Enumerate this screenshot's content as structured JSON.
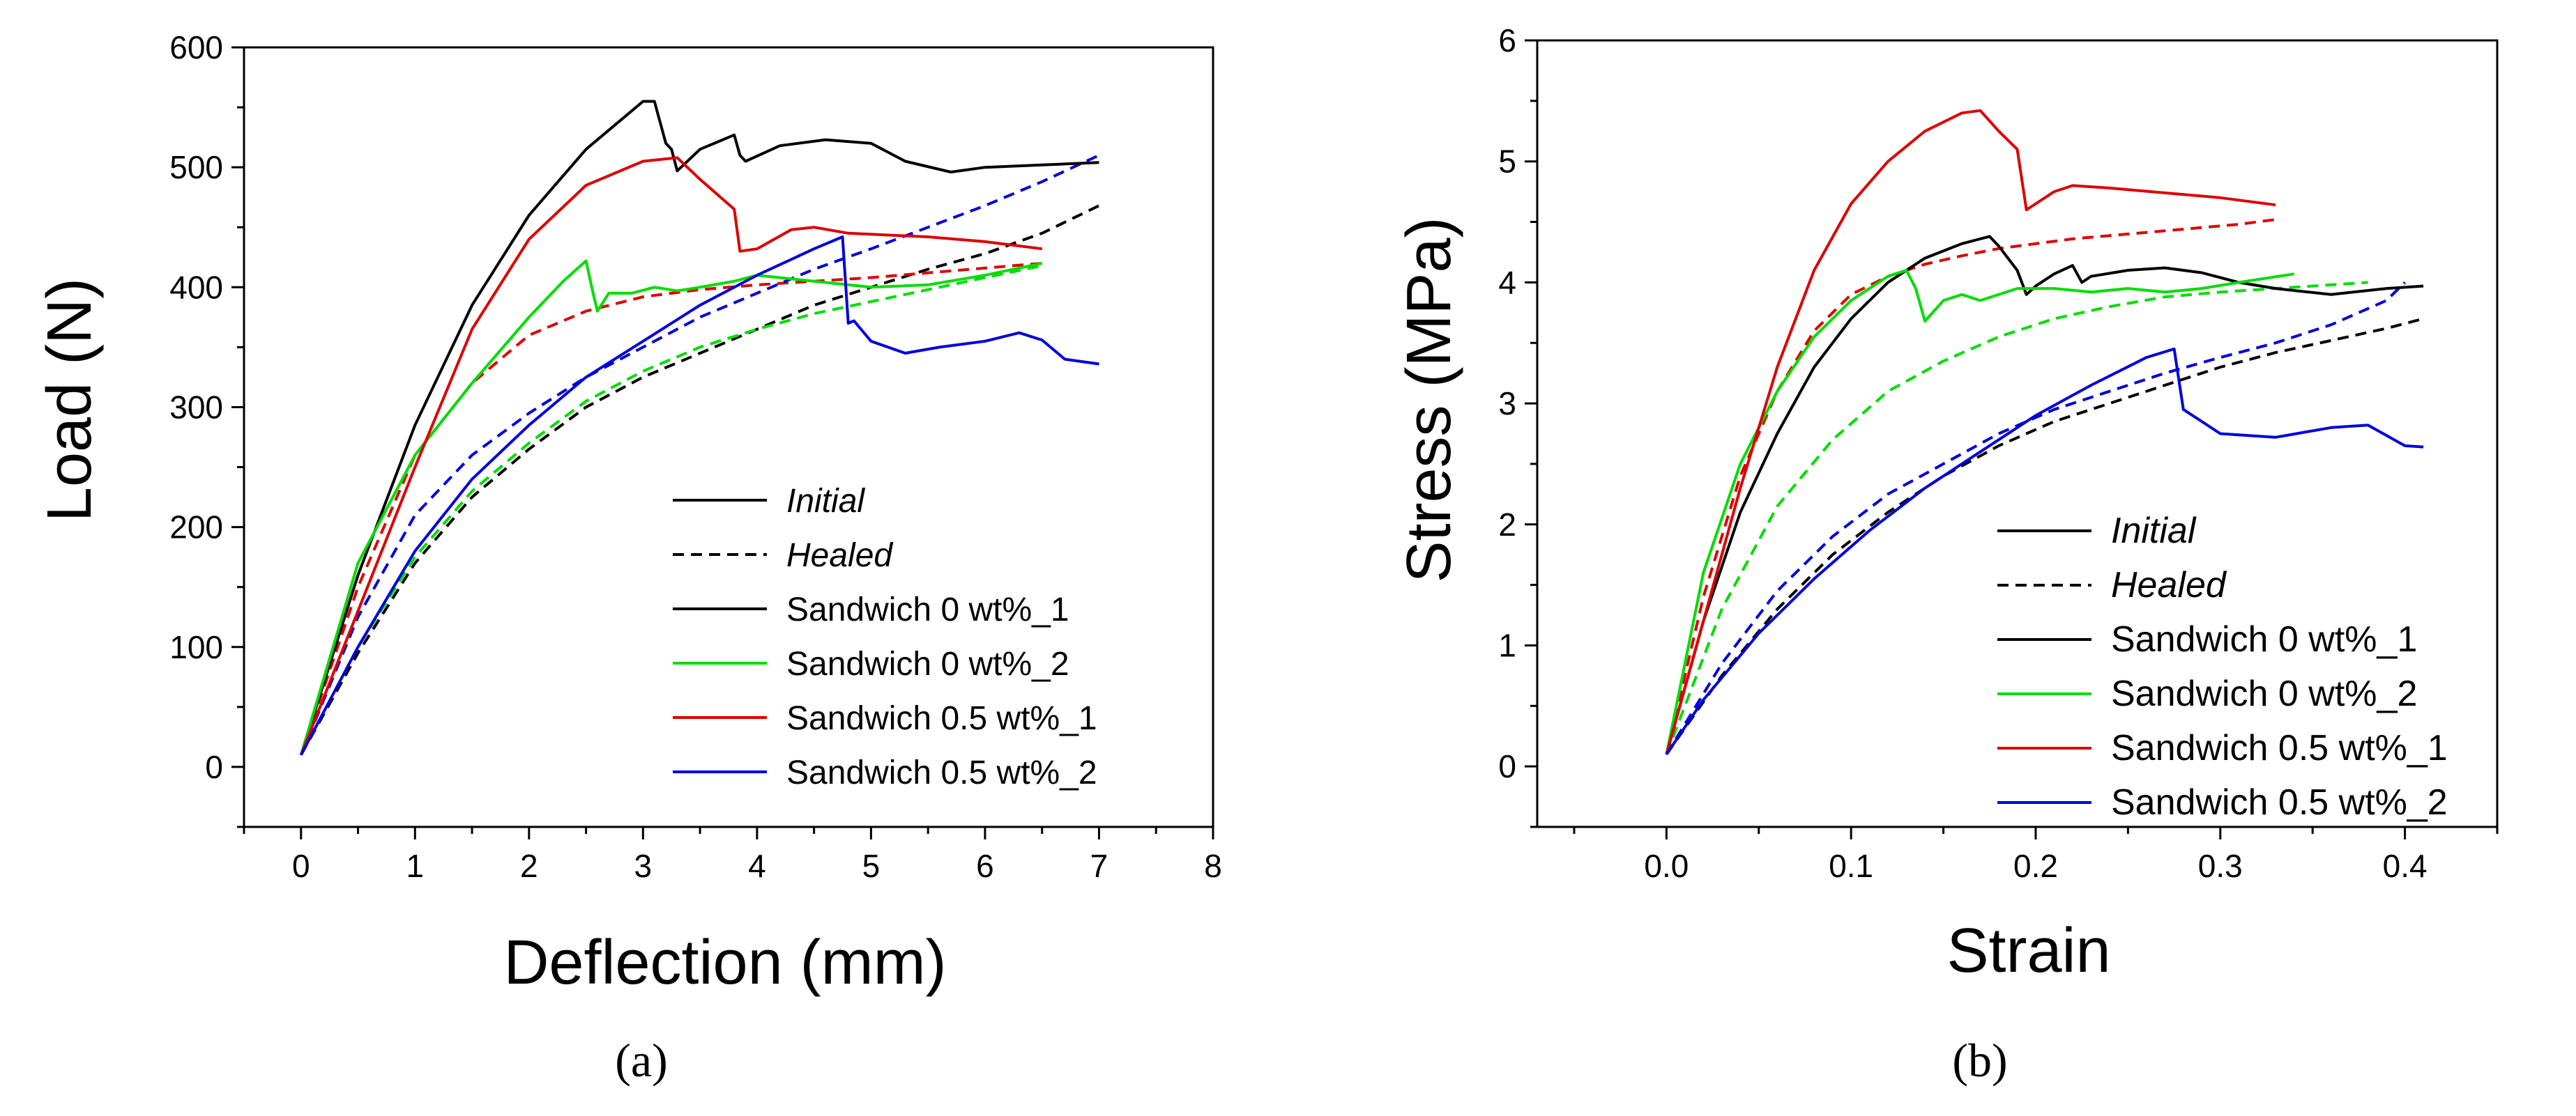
{
  "figure": {
    "legend": {
      "style_entries": [
        {
          "label": "Initial",
          "dash": "solid"
        },
        {
          "label": "Healed",
          "dash": "dashed"
        }
      ],
      "series_entries": [
        {
          "label": "Sandwich 0 wt%_1",
          "color": "#000000"
        },
        {
          "label": "Sandwich 0 wt%_2",
          "color": "#00dd00"
        },
        {
          "label": "Sandwich 0.5 wt%_1",
          "color": "#dd0000"
        },
        {
          "label": "Sandwich 0.5 wt%_2",
          "color": "#0000dd"
        }
      ]
    }
  },
  "chart_data": [
    {
      "id": "a",
      "panel_label": "(a)",
      "type": "line",
      "title": "",
      "xlabel": "Deflection (mm)",
      "ylabel": "Load (N)",
      "xlim": [
        -0.5,
        8
      ],
      "ylim": [
        -50,
        600
      ],
      "xticks": [
        0,
        1,
        2,
        3,
        4,
        5,
        6,
        7,
        8
      ],
      "yticks": [
        0,
        100,
        200,
        300,
        400,
        500,
        600
      ],
      "grid": false,
      "legend_placement": "bottom-right",
      "series": [
        {
          "name": "Sandwich 0 wt%_1",
          "state": "Initial",
          "color": "#000000",
          "dash": "solid",
          "x": [
            0,
            0.5,
            1.0,
            1.5,
            2.0,
            2.5,
            3.0,
            3.1,
            3.2,
            3.25,
            3.3,
            3.5,
            3.8,
            3.85,
            3.9,
            4.2,
            4.6,
            5.0,
            5.3,
            5.7,
            6.0,
            6.5,
            7.0
          ],
          "y": [
            10,
            160,
            285,
            385,
            460,
            515,
            555,
            555,
            520,
            515,
            497,
            515,
            527,
            510,
            505,
            518,
            523,
            520,
            505,
            496,
            500,
            502,
            504
          ]
        },
        {
          "name": "Sandwich 0 wt%_2",
          "state": "Initial",
          "color": "#00dd00",
          "dash": "solid",
          "x": [
            0,
            0.5,
            1.0,
            1.5,
            2.0,
            2.3,
            2.5,
            2.55,
            2.6,
            2.7,
            2.9,
            3.1,
            3.3,
            3.5,
            3.8,
            4.0,
            4.5,
            5.0,
            5.5,
            6.0,
            6.5
          ],
          "y": [
            10,
            170,
            260,
            320,
            375,
            405,
            422,
            400,
            380,
            395,
            395,
            400,
            397,
            400,
            405,
            410,
            405,
            400,
            402,
            410,
            420
          ]
        },
        {
          "name": "Sandwich 0.5 wt%_1",
          "state": "Initial",
          "color": "#dd0000",
          "dash": "solid",
          "x": [
            0,
            0.5,
            1.0,
            1.5,
            2.0,
            2.5,
            3.0,
            3.3,
            3.5,
            3.8,
            3.85,
            4.0,
            4.3,
            4.5,
            4.8,
            5.5,
            6.0,
            6.5
          ],
          "y": [
            10,
            130,
            250,
            365,
            440,
            485,
            505,
            508,
            490,
            465,
            430,
            432,
            448,
            450,
            445,
            442,
            438,
            432
          ]
        },
        {
          "name": "Sandwich 0.5 wt%_2",
          "state": "Initial",
          "color": "#0000dd",
          "dash": "solid",
          "x": [
            0,
            0.5,
            1.0,
            1.5,
            2.0,
            2.5,
            3.0,
            3.5,
            4.0,
            4.5,
            4.75,
            4.8,
            4.85,
            5.0,
            5.3,
            5.6,
            6.0,
            6.3,
            6.5,
            6.7,
            7.0
          ],
          "y": [
            10,
            100,
            180,
            240,
            285,
            325,
            355,
            385,
            410,
            432,
            442,
            370,
            372,
            355,
            345,
            350,
            355,
            362,
            356,
            340,
            336
          ]
        },
        {
          "name": "Sandwich 0 wt%_1",
          "state": "Healed",
          "color": "#000000",
          "dash": "dashed",
          "x": [
            0,
            0.5,
            1.0,
            1.5,
            2.0,
            2.5,
            3.0,
            3.5,
            4.0,
            4.5,
            5.0,
            5.5,
            6.0,
            6.5,
            7.0
          ],
          "y": [
            10,
            95,
            170,
            225,
            265,
            300,
            325,
            345,
            365,
            385,
            400,
            415,
            428,
            445,
            468
          ]
        },
        {
          "name": "Sandwich 0 wt%_2",
          "state": "Healed",
          "color": "#00dd00",
          "dash": "dashed",
          "x": [
            0,
            0.5,
            1.0,
            1.5,
            2.0,
            2.5,
            3.0,
            3.5,
            4.0,
            4.5,
            5.0,
            5.5,
            6.0,
            6.5
          ],
          "y": [
            10,
            100,
            175,
            230,
            270,
            305,
            330,
            350,
            365,
            378,
            388,
            398,
            408,
            418
          ]
        },
        {
          "name": "Sandwich 0.5 wt%_1",
          "state": "Healed",
          "color": "#dd0000",
          "dash": "dashed",
          "x": [
            0,
            0.5,
            1.0,
            1.5,
            2.0,
            2.5,
            3.0,
            3.5,
            4.0,
            4.5,
            5.0,
            5.5,
            6.0,
            6.5
          ],
          "y": [
            10,
            150,
            260,
            320,
            360,
            380,
            392,
            398,
            402,
            405,
            408,
            412,
            416,
            420
          ]
        },
        {
          "name": "Sandwich 0.5 wt%_2",
          "state": "Healed",
          "color": "#0000dd",
          "dash": "dashed",
          "x": [
            0,
            0.5,
            1.0,
            1.5,
            2.0,
            2.5,
            3.0,
            3.5,
            4.0,
            4.5,
            5.0,
            5.5,
            6.0,
            6.5,
            7.0
          ],
          "y": [
            10,
            125,
            210,
            260,
            295,
            325,
            350,
            375,
            395,
            415,
            432,
            450,
            468,
            488,
            510
          ]
        }
      ]
    },
    {
      "id": "b",
      "panel_label": "(b)",
      "type": "line",
      "title": "",
      "xlabel": "Strain",
      "ylabel": "Stress (MPa)",
      "xlim": [
        -0.07,
        0.45
      ],
      "ylim": [
        -0.5,
        6
      ],
      "xticks": [
        0.0,
        0.1,
        0.2,
        0.3,
        0.4
      ],
      "xtick_labels": [
        "0.0",
        "0.1",
        "0.2",
        "0.3",
        "0.4"
      ],
      "yticks": [
        0,
        1,
        2,
        3,
        4,
        5,
        6
      ],
      "grid": false,
      "legend_placement": "bottom-right",
      "series": [
        {
          "name": "Sandwich 0 wt%_1",
          "state": "Initial",
          "color": "#000000",
          "dash": "solid",
          "x": [
            0,
            0.02,
            0.04,
            0.06,
            0.08,
            0.1,
            0.12,
            0.14,
            0.16,
            0.175,
            0.18,
            0.19,
            0.195,
            0.2,
            0.21,
            0.22,
            0.225,
            0.23,
            0.25,
            0.27,
            0.29,
            0.31,
            0.33,
            0.36,
            0.39,
            0.41
          ],
          "y": [
            0.1,
            1.2,
            2.1,
            2.75,
            3.3,
            3.7,
            4.0,
            4.2,
            4.32,
            4.38,
            4.3,
            4.1,
            3.9,
            3.97,
            4.07,
            4.14,
            4.0,
            4.05,
            4.1,
            4.12,
            4.08,
            4.0,
            3.95,
            3.9,
            3.95,
            3.97
          ]
        },
        {
          "name": "Sandwich 0 wt%_2",
          "state": "Initial",
          "color": "#00dd00",
          "dash": "solid",
          "x": [
            0,
            0.02,
            0.04,
            0.06,
            0.08,
            0.1,
            0.12,
            0.13,
            0.135,
            0.14,
            0.15,
            0.16,
            0.17,
            0.19,
            0.21,
            0.23,
            0.25,
            0.27,
            0.29,
            0.31,
            0.34
          ],
          "y": [
            0.1,
            1.6,
            2.5,
            3.1,
            3.55,
            3.85,
            4.05,
            4.1,
            3.95,
            3.68,
            3.85,
            3.9,
            3.85,
            3.95,
            3.95,
            3.92,
            3.95,
            3.92,
            3.95,
            4.0,
            4.07
          ]
        },
        {
          "name": "Sandwich 0.5 wt%_1",
          "state": "Initial",
          "color": "#dd0000",
          "dash": "solid",
          "x": [
            0,
            0.02,
            0.04,
            0.06,
            0.08,
            0.1,
            0.12,
            0.14,
            0.16,
            0.17,
            0.18,
            0.19,
            0.195,
            0.2,
            0.21,
            0.22,
            0.24,
            0.27,
            0.3,
            0.33
          ],
          "y": [
            0.1,
            1.2,
            2.3,
            3.3,
            4.1,
            4.65,
            5.0,
            5.25,
            5.4,
            5.42,
            5.25,
            5.1,
            4.6,
            4.65,
            4.75,
            4.8,
            4.78,
            4.74,
            4.7,
            4.64
          ]
        },
        {
          "name": "Sandwich 0.5 wt%_2",
          "state": "Initial",
          "color": "#0000dd",
          "dash": "solid",
          "x": [
            0,
            0.02,
            0.05,
            0.08,
            0.11,
            0.14,
            0.17,
            0.2,
            0.23,
            0.26,
            0.275,
            0.28,
            0.29,
            0.3,
            0.33,
            0.36,
            0.38,
            0.4,
            0.41
          ],
          "y": [
            0.1,
            0.55,
            1.1,
            1.55,
            1.95,
            2.3,
            2.6,
            2.9,
            3.15,
            3.38,
            3.45,
            2.95,
            2.85,
            2.75,
            2.72,
            2.8,
            2.82,
            2.65,
            2.64
          ]
        },
        {
          "name": "Sandwich 0 wt%_1",
          "state": "Healed",
          "color": "#000000",
          "dash": "dashed",
          "x": [
            0,
            0.03,
            0.06,
            0.09,
            0.12,
            0.15,
            0.18,
            0.21,
            0.24,
            0.27,
            0.3,
            0.33,
            0.36,
            0.39,
            0.41
          ],
          "y": [
            0.1,
            0.75,
            1.3,
            1.75,
            2.1,
            2.4,
            2.65,
            2.85,
            3.0,
            3.15,
            3.3,
            3.42,
            3.52,
            3.62,
            3.7
          ]
        },
        {
          "name": "Sandwich 0 wt%_2",
          "state": "Healed",
          "color": "#00dd00",
          "dash": "dashed",
          "x": [
            0,
            0.03,
            0.06,
            0.09,
            0.12,
            0.15,
            0.18,
            0.21,
            0.24,
            0.27,
            0.3,
            0.33,
            0.35,
            0.38
          ],
          "y": [
            0.1,
            1.3,
            2.15,
            2.7,
            3.1,
            3.35,
            3.55,
            3.7,
            3.8,
            3.88,
            3.92,
            3.95,
            3.97,
            4.0
          ]
        },
        {
          "name": "Sandwich 0.5 wt%_1",
          "state": "Healed",
          "color": "#dd0000",
          "dash": "dashed",
          "x": [
            0,
            0.02,
            0.04,
            0.06,
            0.08,
            0.1,
            0.12,
            0.14,
            0.16,
            0.18,
            0.2,
            0.22,
            0.25,
            0.28,
            0.31,
            0.33
          ],
          "y": [
            0.1,
            1.4,
            2.4,
            3.1,
            3.6,
            3.9,
            4.05,
            4.15,
            4.22,
            4.28,
            4.32,
            4.36,
            4.4,
            4.44,
            4.48,
            4.52
          ]
        },
        {
          "name": "Sandwich 0.5 wt%_2",
          "state": "Healed",
          "color": "#0000dd",
          "dash": "dashed",
          "x": [
            0,
            0.03,
            0.06,
            0.09,
            0.12,
            0.15,
            0.18,
            0.21,
            0.24,
            0.27,
            0.3,
            0.33,
            0.36,
            0.39,
            0.4
          ],
          "y": [
            0.1,
            0.85,
            1.45,
            1.9,
            2.25,
            2.5,
            2.75,
            2.95,
            3.1,
            3.25,
            3.38,
            3.5,
            3.65,
            3.85,
            4.0
          ]
        }
      ]
    }
  ]
}
